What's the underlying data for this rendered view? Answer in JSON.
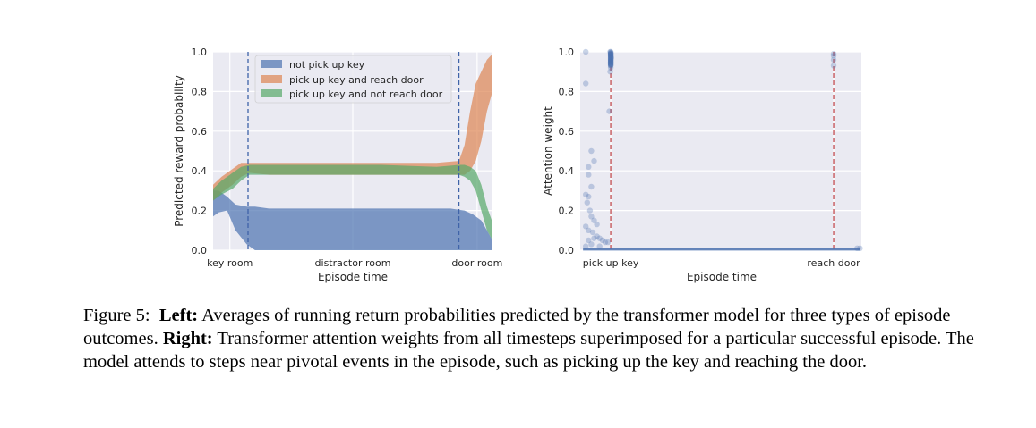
{
  "caption": {
    "prefix": "Figure 5:",
    "left_label": "Left:",
    "left_text": "Averages of running return probabilities predicted by the transformer model for three types of episode outcomes.",
    "right_label": "Right:",
    "right_text": "Transformer attention weights from all timesteps superimposed for a particular successful episode. The model attends to steps near pivotal events in the episode, such as picking up the key and reaching the door."
  },
  "colors": {
    "plot_bg": "#eaeaf2",
    "grid": "#ffffff",
    "blue": "#4c72b0",
    "orange": "#dd8452",
    "green": "#55a868",
    "red_line": "#c44e52"
  },
  "chart_data": [
    {
      "type": "area",
      "xlabel": "Episode time",
      "ylabel": "Predicted reward probability",
      "xticks": [
        "key room",
        "distractor room",
        "door room"
      ],
      "ylim": [
        0,
        1.0
      ],
      "yticks": [
        "0.0",
        "0.2",
        "0.4",
        "0.6",
        "0.8",
        "1.0"
      ],
      "grid": true,
      "legend_position": "top-center",
      "vertical_dashed_lines": [
        "after key room",
        "before door room"
      ],
      "series": [
        {
          "name": "not pick up key",
          "color": "blue",
          "x": [
            0,
            0.02,
            0.05,
            0.08,
            0.12,
            0.15,
            0.2,
            0.3,
            0.5,
            0.7,
            0.85,
            0.9,
            0.93,
            0.96,
            0.98,
            1.0
          ],
          "lower": [
            0.17,
            0.19,
            0.2,
            0.1,
            0.03,
            0.0,
            0.0,
            0.0,
            0.0,
            0.0,
            0.0,
            0.0,
            0.0,
            0.0,
            0.0,
            0.0
          ],
          "upper": [
            0.3,
            0.3,
            0.27,
            0.23,
            0.22,
            0.22,
            0.21,
            0.21,
            0.21,
            0.21,
            0.21,
            0.2,
            0.18,
            0.15,
            0.1,
            0.05
          ]
        },
        {
          "name": "pick up key and reach door",
          "color": "orange",
          "x": [
            0,
            0.03,
            0.07,
            0.1,
            0.13,
            0.2,
            0.4,
            0.6,
            0.8,
            0.88,
            0.9,
            0.92,
            0.94,
            0.96,
            0.98,
            1.0
          ],
          "lower": [
            0.25,
            0.29,
            0.33,
            0.37,
            0.39,
            0.38,
            0.38,
            0.38,
            0.38,
            0.38,
            0.38,
            0.4,
            0.45,
            0.55,
            0.7,
            0.8
          ],
          "upper": [
            0.33,
            0.37,
            0.41,
            0.44,
            0.44,
            0.44,
            0.44,
            0.44,
            0.44,
            0.45,
            0.53,
            0.7,
            0.84,
            0.9,
            0.96,
            0.99
          ]
        },
        {
          "name": "pick up key and not reach door",
          "color": "green",
          "x": [
            0,
            0.03,
            0.07,
            0.1,
            0.13,
            0.2,
            0.4,
            0.6,
            0.8,
            0.88,
            0.9,
            0.92,
            0.94,
            0.96,
            0.98,
            1.0
          ],
          "lower": [
            0.25,
            0.28,
            0.31,
            0.35,
            0.38,
            0.38,
            0.38,
            0.38,
            0.38,
            0.38,
            0.37,
            0.35,
            0.3,
            0.2,
            0.1,
            0.05
          ],
          "upper": [
            0.31,
            0.35,
            0.39,
            0.42,
            0.43,
            0.43,
            0.43,
            0.43,
            0.42,
            0.43,
            0.43,
            0.42,
            0.4,
            0.33,
            0.22,
            0.14
          ]
        }
      ]
    },
    {
      "type": "scatter",
      "xlabel": "Episode time",
      "ylabel": "Attention weight",
      "xticks": [
        "pick up key",
        "reach door"
      ],
      "ylim": [
        0,
        1.0
      ],
      "yticks": [
        "0.0",
        "0.2",
        "0.4",
        "0.6",
        "0.8",
        "1.0"
      ],
      "grid": true,
      "vertical_dashed_lines": [
        "pick up key",
        "reach door"
      ],
      "series": [
        {
          "name": "",
          "color": "blue",
          "points": [
            [
              0.01,
              1.0
            ],
            [
              0.01,
              0.84
            ],
            [
              0.02,
              0.42
            ],
            [
              0.02,
              0.38
            ],
            [
              0.03,
              0.5
            ],
            [
              0.03,
              0.32
            ],
            [
              0.04,
              0.45
            ],
            [
              0.01,
              0.28
            ],
            [
              0.02,
              0.27
            ],
            [
              0.015,
              0.24
            ],
            [
              0.025,
              0.2
            ],
            [
              0.03,
              0.17
            ],
            [
              0.04,
              0.15
            ],
            [
              0.05,
              0.13
            ],
            [
              0.01,
              0.12
            ],
            [
              0.02,
              0.1
            ],
            [
              0.035,
              0.09
            ],
            [
              0.05,
              0.07
            ],
            [
              0.06,
              0.06
            ],
            [
              0.07,
              0.05
            ],
            [
              0.08,
              0.04
            ],
            [
              0.09,
              0.04
            ],
            [
              0.03,
              0.03
            ],
            [
              0.06,
              0.02
            ],
            [
              0.02,
              0.05
            ],
            [
              0.04,
              0.06
            ],
            [
              0.01,
              0.02
            ],
            [
              0.095,
              0.7
            ],
            [
              0.098,
              0.9
            ],
            [
              0.1,
              0.92
            ],
            [
              0.1,
              0.96
            ],
            [
              0.1,
              0.99
            ],
            [
              0.1,
              1.0
            ],
            [
              0.1,
              0.98
            ],
            [
              0.1,
              0.94
            ],
            [
              0.102,
              0.97
            ],
            [
              0.098,
              1.0
            ],
            [
              0.1,
              0.95
            ],
            [
              0.905,
              0.96
            ],
            [
              0.905,
              0.98
            ],
            [
              0.905,
              0.93
            ],
            [
              0.905,
              0.99
            ],
            [
              0.99,
              0.01
            ],
            [
              1.0,
              0.01
            ]
          ]
        }
      ]
    }
  ]
}
